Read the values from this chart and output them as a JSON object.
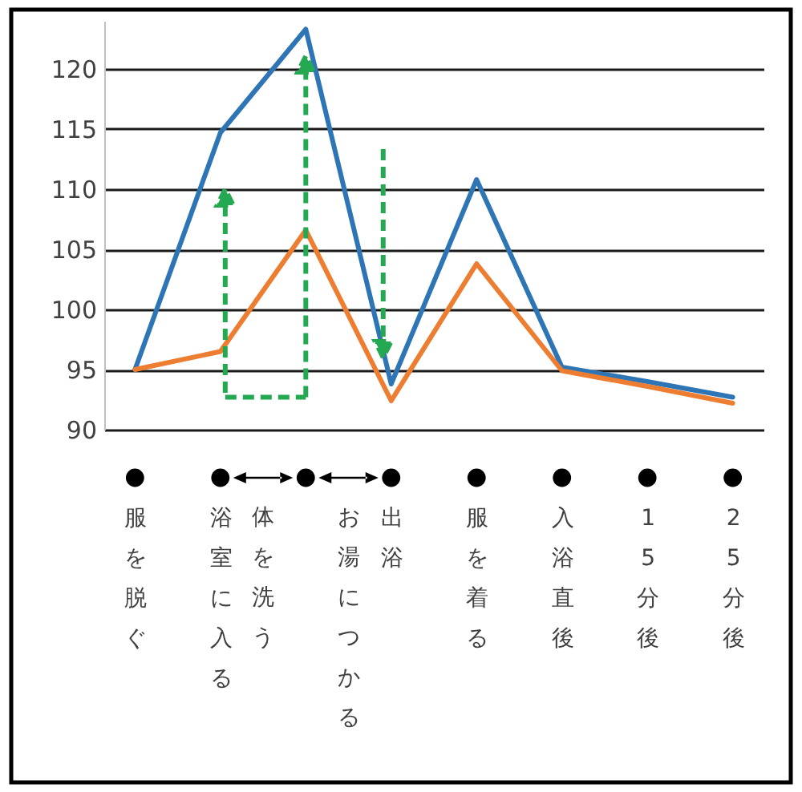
{
  "chart_data": {
    "type": "line",
    "categories": [
      "服を脱ぐ",
      "浴室に入る",
      null,
      "出浴",
      "服を着る",
      "入浴直後",
      "15分後",
      "25分後"
    ],
    "annotations": [
      "体を洗う",
      "お湯につかる"
    ],
    "ylim": [
      90,
      124
    ],
    "yticks": [
      90,
      95,
      100,
      105,
      110,
      115,
      120
    ],
    "grid": "y",
    "series": [
      {
        "color": "#2e75b6",
        "values": [
          95,
          114.7,
          123.3,
          93.8,
          110.8,
          95.2,
          94.0,
          92.7
        ]
      },
      {
        "color": "#ed7d31",
        "values": [
          95,
          96.5,
          106.6,
          92.4,
          103.8,
          94.9,
          93.6,
          92.2
        ]
      }
    ]
  }
}
